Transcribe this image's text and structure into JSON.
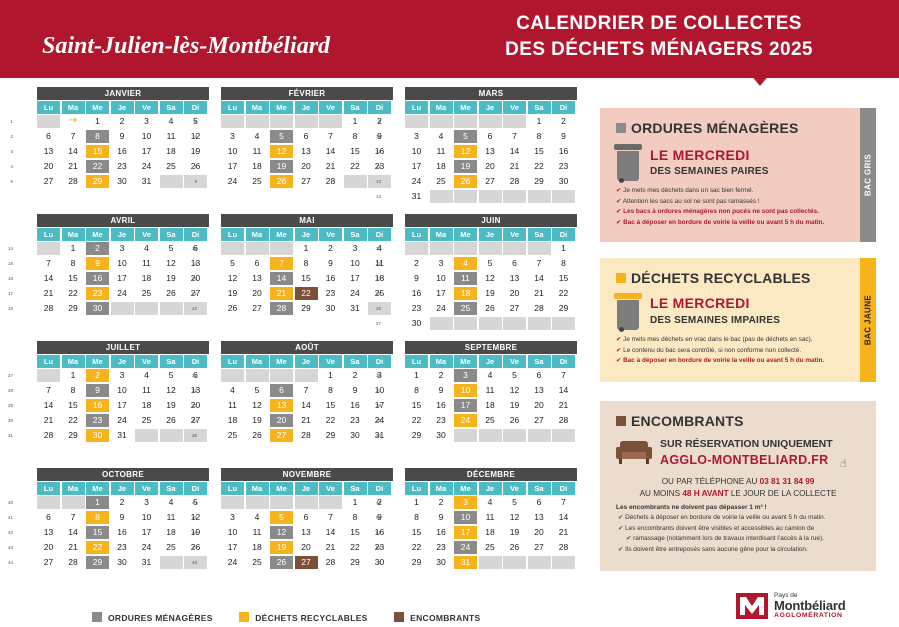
{
  "header": {
    "commune": "Saint-Julien-lès-Montbéliard",
    "title_line1": "CALENDRIER DE COLLECTES",
    "title_line2": "DES DÉCHETS MÉNAGERS 2025"
  },
  "day_headers": [
    "Lu",
    "Ma",
    "Me",
    "Je",
    "Ve",
    "Sa",
    "Di"
  ],
  "colors": {
    "gris": "#8a8a8a",
    "jaune": "#f6b31b",
    "encombrants": "#7c5038",
    "header": "#b0172f",
    "day_header": "#4cbbc4"
  },
  "months": [
    {
      "name": "JANVIER",
      "offset": 2,
      "days": 31,
      "weeks": [
        "1",
        "2",
        "3",
        "4",
        "5"
      ],
      "gris": [
        8,
        22
      ],
      "jaune": [
        15,
        29
      ],
      "enc": [],
      "arrow_first_day": 2
    },
    {
      "name": "FÉVRIER",
      "offset": 5,
      "days": 28,
      "weeks": [
        "5",
        "6",
        "7",
        "8",
        "9"
      ],
      "gris": [
        5,
        19
      ],
      "jaune": [
        12,
        26
      ],
      "enc": []
    },
    {
      "name": "MARS",
      "offset": 5,
      "days": 31,
      "weeks": [
        "9",
        "10",
        "11",
        "12",
        "13",
        "14"
      ],
      "gris": [
        5,
        19
      ],
      "jaune": [
        12,
        26
      ],
      "enc": []
    },
    {
      "name": "AVRIL",
      "offset": 1,
      "days": 30,
      "weeks": [
        "14",
        "15",
        "16",
        "17",
        "18"
      ],
      "gris": [
        2,
        16,
        30
      ],
      "jaune": [
        9,
        23
      ],
      "enc": []
    },
    {
      "name": "MAI",
      "offset": 3,
      "days": 31,
      "weeks": [
        "18",
        "19",
        "20",
        "21",
        "22"
      ],
      "gris": [
        14,
        28
      ],
      "jaune": [
        7,
        21
      ],
      "enc": [
        22
      ]
    },
    {
      "name": "JUIN",
      "offset": 6,
      "days": 30,
      "weeks": [
        "22",
        "23",
        "24",
        "25",
        "26",
        "27"
      ],
      "gris": [
        11,
        25
      ],
      "jaune": [
        4,
        18
      ],
      "enc": []
    },
    {
      "name": "JUILLET",
      "offset": 1,
      "days": 31,
      "weeks": [
        "27",
        "28",
        "29",
        "30",
        "31"
      ],
      "gris": [
        9,
        23
      ],
      "jaune": [
        2,
        16,
        30
      ],
      "enc": []
    },
    {
      "name": "AOÛT",
      "offset": 4,
      "days": 31,
      "weeks": [
        "31",
        "32",
        "33",
        "34",
        "35"
      ],
      "gris": [
        6,
        20
      ],
      "jaune": [
        13,
        27
      ],
      "enc": []
    },
    {
      "name": "SEPTEMBRE",
      "offset": 0,
      "days": 30,
      "weeks": [
        "36",
        "37",
        "38",
        "39",
        "40"
      ],
      "gris": [
        3,
        17
      ],
      "jaune": [
        10,
        24
      ],
      "enc": []
    },
    {
      "name": "OCTOBRE",
      "offset": 2,
      "days": 31,
      "weeks": [
        "40",
        "41",
        "42",
        "43",
        "44"
      ],
      "gris": [
        1,
        15,
        29
      ],
      "jaune": [
        8,
        22
      ],
      "enc": []
    },
    {
      "name": "NOVEMBRE",
      "offset": 5,
      "days": 30,
      "weeks": [
        "44",
        "45",
        "46",
        "47",
        "48"
      ],
      "gris": [
        12,
        26
      ],
      "jaune": [
        5,
        19
      ],
      "enc": [
        27
      ]
    },
    {
      "name": "DÉCEMBRE",
      "offset": 0,
      "days": 31,
      "weeks": [
        "49",
        "50",
        "51",
        "52",
        "1"
      ],
      "gris": [
        10,
        24
      ],
      "jaune": [
        3,
        17,
        31
      ],
      "enc": []
    }
  ],
  "ordures": {
    "title": "ORDURES MÉNAGÈRES",
    "day": "LE MERCREDI",
    "weeks": "DES SEMAINES PAIRES",
    "tab": "BAC GRIS",
    "notes": [
      {
        "text": "Je mets mes déchets dans un sac bien fermé.",
        "red": false
      },
      {
        "text": "Attention les sacs au sol ne sont pas ramassés !",
        "red": false
      },
      {
        "text": "Les bacs à ordures ménagères non pucés ne sont pas collectés.",
        "red": true
      },
      {
        "text": "Bac à déposer en bordure de voirie la veille ou avant 5 h du matin.",
        "red": true
      }
    ]
  },
  "recyclables": {
    "title": "DÉCHETS RECYCLABLES",
    "day": "LE MERCREDI",
    "weeks": "DES SEMAINES IMPAIRES",
    "tab": "BAC JAUNE",
    "notes": [
      {
        "text": "Je mets mes déchets en vrac dans le bac (pas de déchets en sac).",
        "red": false
      },
      {
        "text": "Le contenu du bac sera contrôlé, si non conforme non collecté.",
        "red": false
      },
      {
        "text": "Bac à déposer en bordure de voirie la veille ou avant 5 h du matin.",
        "red": true
      }
    ]
  },
  "encombrants": {
    "title": "ENCOMBRANTS",
    "line1": "SUR RÉSERVATION UNIQUEMENT",
    "site": "AGGLO-MONTBELIARD.FR",
    "phone_prefix": "OU PAR TÉLÉPHONE AU",
    "phone": "03 81 31 84 99",
    "delay_prefix": "AU MOINS",
    "delay": "48 H AVANT",
    "delay_suffix": "LE JOUR DE LA COLLECTE",
    "max": "Les encombrants ne doivent pas dépasser 1 m³ !",
    "notes": [
      "Déchets à déposer en bordure de voirie la veille ou avant 5 h du matin.",
      "Les encombrants doivent être visibles et accessibles au camion de",
      "ramassage (notamment lors de travaux interdisant l’accès à la rue).",
      "Ils doivent être entreposés sans aucune gêne pour la circulation."
    ]
  },
  "legend": {
    "gris": "ORDURES MÉNAGÈRES",
    "jaune": "DÉCHETS RECYCLABLES",
    "enc": "ENCOMBRANTS"
  },
  "logo": {
    "pays": "Pays de",
    "name": "Montbéliard",
    "agglo": "AGGLOMÉRATION"
  }
}
